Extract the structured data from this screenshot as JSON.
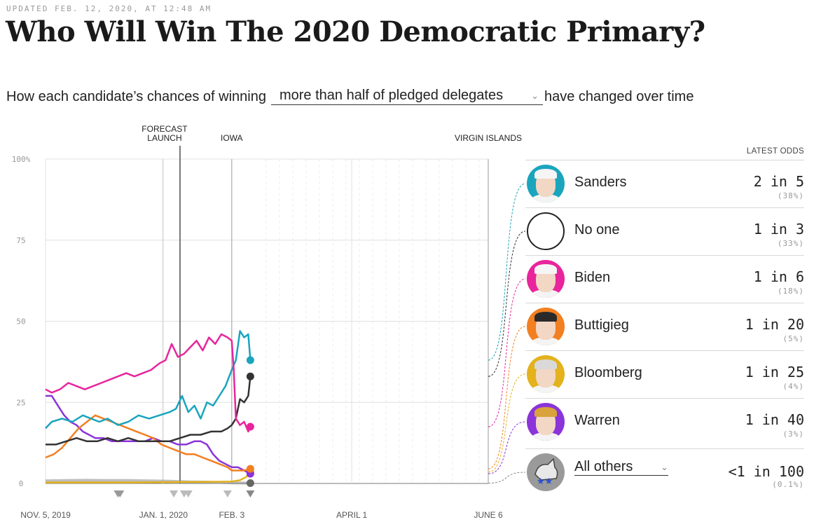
{
  "header": {
    "updated": "UPDATED FEB. 12, 2020, AT 12:48 AM",
    "title": "Who Will Win The 2020 Democratic Primary?",
    "subtitle_pre": "How each candidate’s chances of winning",
    "select_value": "more than half of pledged delegates",
    "subtitle_post": "have changed over time"
  },
  "chart_data": {
    "type": "line",
    "title": "",
    "xlabel": "",
    "ylabel": "",
    "ylim": [
      0,
      100
    ],
    "y_ticks": [
      "100%",
      "75",
      "50",
      "25",
      "0"
    ],
    "x_range_days": [
      0,
      214
    ],
    "x_ticks": [
      {
        "label": "NOV. 5, 2019",
        "day": 0
      },
      {
        "label": "JAN. 1, 2020",
        "day": 57
      },
      {
        "label": "FEB. 3",
        "day": 90
      },
      {
        "label": "APRIL 1",
        "day": 148
      },
      {
        "label": "JUNE 6",
        "day": 214
      }
    ],
    "events": [
      {
        "label_lines": [
          "FORECAST",
          "LAUNCH"
        ],
        "day": 65
      },
      {
        "label_lines": [
          "IOWA"
        ],
        "day": 90
      },
      {
        "label_lines": [
          "VIRGIN ISLANDS"
        ],
        "day": 214
      }
    ],
    "series": [
      {
        "name": "Sanders",
        "color": "#1aa5bd",
        "points": [
          [
            0,
            17
          ],
          [
            3,
            19
          ],
          [
            8,
            20
          ],
          [
            13,
            19
          ],
          [
            18,
            21
          ],
          [
            22,
            20
          ],
          [
            26,
            19
          ],
          [
            30,
            20
          ],
          [
            35,
            18
          ],
          [
            40,
            19
          ],
          [
            45,
            21
          ],
          [
            50,
            20
          ],
          [
            55,
            21
          ],
          [
            60,
            22
          ],
          [
            63,
            23
          ],
          [
            66,
            27
          ],
          [
            69,
            22
          ],
          [
            72,
            24
          ],
          [
            75,
            20
          ],
          [
            78,
            25
          ],
          [
            81,
            24
          ],
          [
            84,
            27
          ],
          [
            87,
            30
          ],
          [
            90,
            35
          ],
          [
            92,
            38
          ],
          [
            94,
            47
          ],
          [
            96,
            45
          ],
          [
            98,
            46
          ],
          [
            99,
            38
          ]
        ]
      },
      {
        "name": "No one",
        "color": "#333333",
        "points": [
          [
            0,
            12
          ],
          [
            5,
            12
          ],
          [
            10,
            13
          ],
          [
            15,
            14
          ],
          [
            20,
            13
          ],
          [
            25,
            13
          ],
          [
            30,
            14
          ],
          [
            35,
            13
          ],
          [
            40,
            14
          ],
          [
            45,
            13
          ],
          [
            50,
            13
          ],
          [
            55,
            13
          ],
          [
            60,
            13
          ],
          [
            65,
            14
          ],
          [
            70,
            15
          ],
          [
            75,
            15
          ],
          [
            80,
            16
          ],
          [
            85,
            16
          ],
          [
            88,
            17
          ],
          [
            90,
            18
          ],
          [
            92,
            20
          ],
          [
            94,
            26
          ],
          [
            96,
            25
          ],
          [
            98,
            27
          ],
          [
            99,
            33
          ]
        ]
      },
      {
        "name": "Biden",
        "color": "#e8259c",
        "points": [
          [
            0,
            29
          ],
          [
            3,
            28
          ],
          [
            7,
            29
          ],
          [
            11,
            31
          ],
          [
            15,
            30
          ],
          [
            19,
            29
          ],
          [
            23,
            30
          ],
          [
            27,
            31
          ],
          [
            31,
            32
          ],
          [
            35,
            33
          ],
          [
            39,
            34
          ],
          [
            43,
            33
          ],
          [
            47,
            34
          ],
          [
            51,
            35
          ],
          [
            55,
            37
          ],
          [
            58,
            38
          ],
          [
            61,
            43
          ],
          [
            64,
            39
          ],
          [
            67,
            40
          ],
          [
            70,
            42
          ],
          [
            73,
            44
          ],
          [
            76,
            41
          ],
          [
            79,
            45
          ],
          [
            82,
            43
          ],
          [
            85,
            46
          ],
          [
            88,
            45
          ],
          [
            90,
            44
          ],
          [
            91,
            35
          ],
          [
            92,
            20
          ],
          [
            94,
            18
          ],
          [
            96,
            19
          ],
          [
            98,
            16
          ],
          [
            99,
            17.5
          ]
        ]
      },
      {
        "name": "Buttigieg",
        "color": "#f27f21",
        "points": [
          [
            0,
            8
          ],
          [
            4,
            9
          ],
          [
            8,
            11
          ],
          [
            12,
            14
          ],
          [
            16,
            17
          ],
          [
            20,
            19
          ],
          [
            24,
            21
          ],
          [
            28,
            20
          ],
          [
            32,
            19
          ],
          [
            36,
            18
          ],
          [
            40,
            17
          ],
          [
            44,
            16
          ],
          [
            48,
            15
          ],
          [
            52,
            14
          ],
          [
            56,
            12
          ],
          [
            60,
            11
          ],
          [
            64,
            10
          ],
          [
            68,
            9
          ],
          [
            72,
            9
          ],
          [
            76,
            8
          ],
          [
            80,
            7
          ],
          [
            84,
            6
          ],
          [
            88,
            5
          ],
          [
            90,
            4
          ],
          [
            93,
            4
          ],
          [
            96,
            4
          ],
          [
            99,
            4.5
          ]
        ]
      },
      {
        "name": "Bloomberg",
        "color": "#e3b21c",
        "points": [
          [
            0,
            0.3
          ],
          [
            20,
            0.3
          ],
          [
            40,
            0.3
          ],
          [
            60,
            0.4
          ],
          [
            80,
            0.5
          ],
          [
            90,
            0.6
          ],
          [
            94,
            1
          ],
          [
            97,
            2
          ],
          [
            99,
            3.5
          ]
        ]
      },
      {
        "name": "Warren",
        "color": "#8b34d9",
        "points": [
          [
            0,
            27
          ],
          [
            3,
            27
          ],
          [
            6,
            24
          ],
          [
            9,
            21
          ],
          [
            12,
            19
          ],
          [
            15,
            18
          ],
          [
            18,
            16
          ],
          [
            21,
            15
          ],
          [
            24,
            14
          ],
          [
            28,
            14
          ],
          [
            32,
            13
          ],
          [
            36,
            13
          ],
          [
            40,
            13
          ],
          [
            44,
            13
          ],
          [
            48,
            13
          ],
          [
            52,
            14
          ],
          [
            56,
            13
          ],
          [
            60,
            13
          ],
          [
            64,
            12
          ],
          [
            68,
            12
          ],
          [
            72,
            13
          ],
          [
            75,
            13
          ],
          [
            78,
            12
          ],
          [
            81,
            9
          ],
          [
            84,
            7
          ],
          [
            87,
            6
          ],
          [
            90,
            5
          ],
          [
            93,
            5
          ],
          [
            96,
            4
          ],
          [
            99,
            3
          ]
        ]
      },
      {
        "name": "All others",
        "color": "#888888",
        "points": [
          [
            0,
            0.8
          ],
          [
            10,
            0.9
          ],
          [
            20,
            1
          ],
          [
            30,
            0.9
          ],
          [
            40,
            0.9
          ],
          [
            50,
            0.8
          ],
          [
            60,
            0.7
          ],
          [
            70,
            0.5
          ],
          [
            80,
            0.4
          ],
          [
            90,
            0.2
          ],
          [
            99,
            0.1
          ]
        ]
      }
    ]
  },
  "legend": {
    "heading": "LATEST ODDS",
    "rows": [
      {
        "name": "Sanders",
        "odds": "2 in 5",
        "pct": "(38%)",
        "color": "#1aa5bd",
        "icon": "sanders-portrait-icon"
      },
      {
        "name": "No one",
        "odds": "1 in 3",
        "pct": "(33%)",
        "color": "#333333",
        "icon": "empty-circle-icon"
      },
      {
        "name": "Biden",
        "odds": "1 in 6",
        "pct": "(18%)",
        "color": "#e8259c",
        "icon": "biden-portrait-icon"
      },
      {
        "name": "Buttigieg",
        "odds": "1 in 20",
        "pct": "(5%)",
        "color": "#f27f21",
        "icon": "buttigieg-portrait-icon"
      },
      {
        "name": "Bloomberg",
        "odds": "1 in 25",
        "pct": "(4%)",
        "color": "#e3b21c",
        "icon": "bloomberg-portrait-icon"
      },
      {
        "name": "Warren",
        "odds": "1 in 40",
        "pct": "(3%)",
        "color": "#8b34d9",
        "icon": "warren-portrait-icon"
      }
    ],
    "others": {
      "name": "All others",
      "odds": "<1 in 100",
      "pct": "(0.1%)",
      "color": "#888888",
      "icon": "donkey-icon"
    }
  }
}
